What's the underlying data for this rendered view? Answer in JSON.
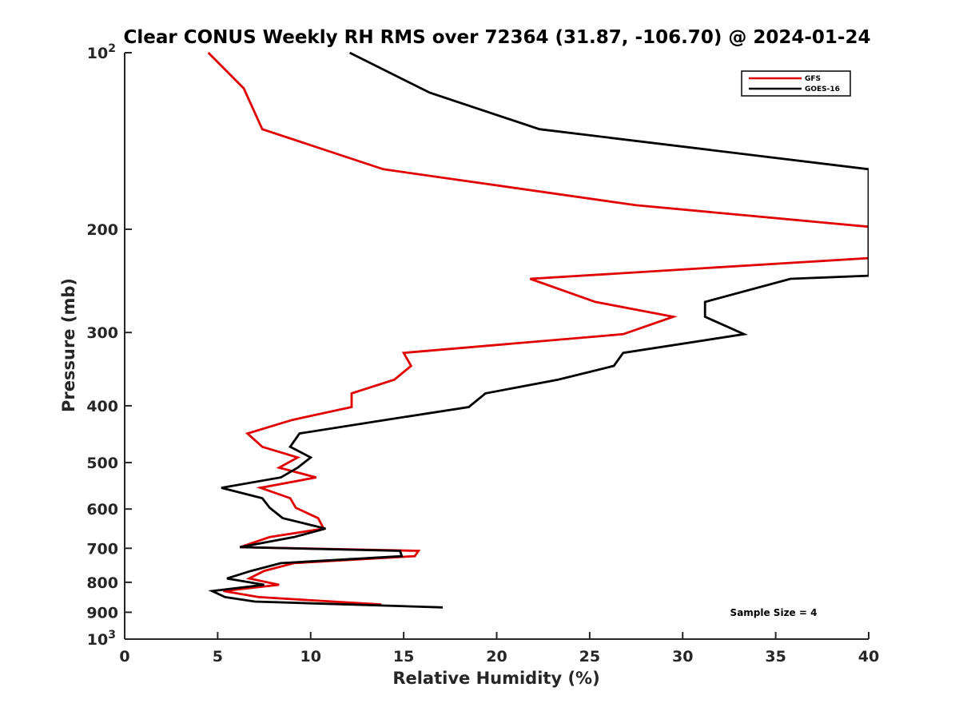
{
  "chart_data": {
    "type": "line",
    "title": "Clear CONUS Weekly RH RMS over 72364 (31.87, -106.70) @ 2024-01-24",
    "xlabel": "Relative Humidity (%)",
    "ylabel": "Pressure (mb)",
    "xlim": [
      0,
      40
    ],
    "ylim": [
      100,
      1000
    ],
    "y_scale": "log",
    "y_reversed": true,
    "grid": false,
    "legend_position": "top-right",
    "x_ticks": [
      0,
      5,
      10,
      15,
      20,
      25,
      30,
      35,
      40
    ],
    "x_tick_labels": [
      "0",
      "5",
      "10",
      "15",
      "20",
      "25",
      "30",
      "35",
      "40"
    ],
    "y_ticks": [
      {
        "value": 100,
        "base": "10",
        "exp": "2"
      },
      {
        "value": 200,
        "label": "200"
      },
      {
        "value": 300,
        "label": "300"
      },
      {
        "value": 400,
        "label": "400"
      },
      {
        "value": 500,
        "label": "500"
      },
      {
        "value": 600,
        "label": "600"
      },
      {
        "value": 700,
        "label": "700"
      },
      {
        "value": 800,
        "label": "800"
      },
      {
        "value": 900,
        "label": "900"
      },
      {
        "value": 1000,
        "base": "10",
        "exp": "3"
      }
    ],
    "series": [
      {
        "name": "GFS",
        "color": "#e00000",
        "points": [
          [
            4.5,
            100
          ],
          [
            6.4,
            115
          ],
          [
            7.4,
            135
          ],
          [
            13.9,
            158
          ],
          [
            27.5,
            182
          ],
          [
            40.0,
            198
          ],
          [
            40.0,
            224
          ],
          [
            21.8,
            243
          ],
          [
            25.3,
            266
          ],
          [
            29.5,
            282
          ],
          [
            26.8,
            302
          ],
          [
            15.0,
            325
          ],
          [
            15.4,
            342
          ],
          [
            14.5,
            361
          ],
          [
            12.2,
            381
          ],
          [
            12.2,
            402
          ],
          [
            9.0,
            423
          ],
          [
            6.6,
            446
          ],
          [
            7.4,
            470
          ],
          [
            9.3,
            490
          ],
          [
            8.3,
            510
          ],
          [
            10.3,
            530
          ],
          [
            7.3,
            552
          ],
          [
            8.9,
            575
          ],
          [
            9.2,
            597
          ],
          [
            10.4,
            622
          ],
          [
            10.7,
            648
          ],
          [
            7.8,
            670
          ],
          [
            6.2,
            697
          ],
          [
            15.8,
            707
          ],
          [
            15.6,
            722
          ],
          [
            9.1,
            742
          ],
          [
            7.5,
            765
          ],
          [
            6.7,
            788
          ],
          [
            8.3,
            808
          ],
          [
            5.3,
            828
          ],
          [
            7.2,
            848
          ],
          [
            13.8,
            873
          ]
        ]
      },
      {
        "name": "GOES-16",
        "color": "#000000",
        "points": [
          [
            12.1,
            100
          ],
          [
            16.4,
            117
          ],
          [
            22.3,
            135
          ],
          [
            40.0,
            158
          ],
          [
            40.0,
            240
          ],
          [
            35.8,
            243
          ],
          [
            31.2,
            266
          ],
          [
            31.2,
            282
          ],
          [
            33.3,
            302
          ],
          [
            26.8,
            325
          ],
          [
            26.3,
            342
          ],
          [
            23.3,
            361
          ],
          [
            19.4,
            381
          ],
          [
            18.5,
            402
          ],
          [
            14.0,
            423
          ],
          [
            9.4,
            446
          ],
          [
            8.9,
            470
          ],
          [
            10.0,
            490
          ],
          [
            9.3,
            510
          ],
          [
            8.4,
            530
          ],
          [
            5.2,
            552
          ],
          [
            7.4,
            575
          ],
          [
            7.8,
            597
          ],
          [
            8.5,
            622
          ],
          [
            10.8,
            648
          ],
          [
            9.1,
            670
          ],
          [
            6.2,
            697
          ],
          [
            14.8,
            707
          ],
          [
            14.9,
            722
          ],
          [
            8.4,
            742
          ],
          [
            6.8,
            765
          ],
          [
            5.5,
            788
          ],
          [
            7.5,
            808
          ],
          [
            4.7,
            828
          ],
          [
            5.4,
            848
          ],
          [
            7.0,
            863
          ],
          [
            17.1,
            883
          ]
        ]
      }
    ],
    "annotation": "Sample Size = 4"
  }
}
